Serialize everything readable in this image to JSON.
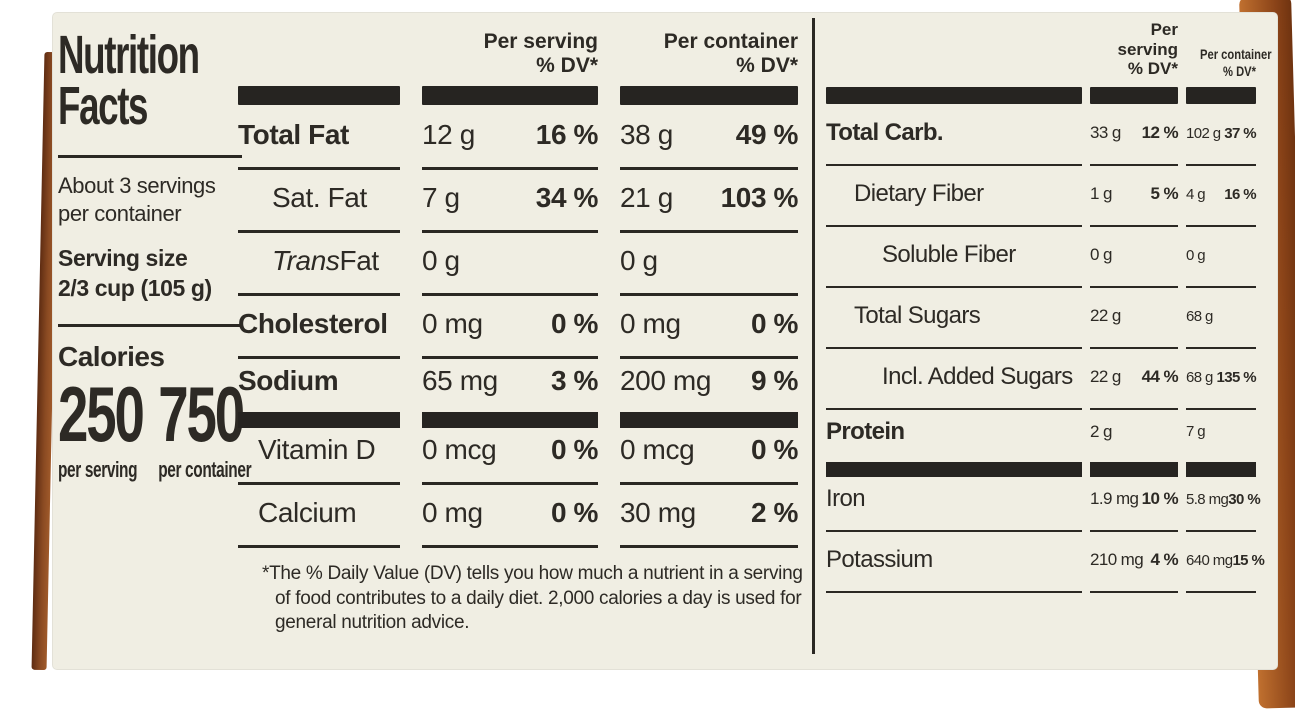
{
  "label": {
    "title_line1": "Nutrition",
    "title_line2": "Facts",
    "servings_line1": "About 3 servings",
    "servings_line2": "per container",
    "serving_size_label": "Serving size",
    "serving_size_value": "2/3 cup (105 g)",
    "calories": {
      "label": "Calories",
      "per_serving_value": "250",
      "per_serving_caption": "per serving",
      "per_container_value": "750",
      "per_container_caption": "per container"
    },
    "mid_panel": {
      "headers": {
        "serving_l1": "Per serving",
        "serving_l2": "% DV*",
        "container_l1": "Per container",
        "container_l2": "% DV*"
      },
      "rows": [
        {
          "name": "Total Fat",
          "s_amt": "12 g",
          "s_dv": "16 %",
          "c_amt": "38 g",
          "c_dv": "49 %"
        },
        {
          "name": "Sat. Fat",
          "s_amt": "7 g",
          "s_dv": "34 %",
          "c_amt": "21 g",
          "c_dv": "103 %"
        },
        {
          "name_it": "Trans",
          "name": " Fat",
          "s_amt": "0 g",
          "s_dv": "",
          "c_amt": "0 g",
          "c_dv": ""
        },
        {
          "name": "Cholesterol",
          "s_amt": "0 mg",
          "s_dv": "0 %",
          "c_amt": "0 mg",
          "c_dv": "0 %"
        },
        {
          "name": "Sodium",
          "s_amt": "65 mg",
          "s_dv": "3 %",
          "c_amt": "200 mg",
          "c_dv": "9 %"
        },
        {
          "name": "Vitamin D",
          "s_amt": "0 mcg",
          "s_dv": "0 %",
          "c_amt": "0 mcg",
          "c_dv": "0 %"
        },
        {
          "name": "Calcium",
          "s_amt": "0 mg",
          "s_dv": "0 %",
          "c_amt": "30 mg",
          "c_dv": "2 %"
        }
      ],
      "footnote": "*The % Daily Value (DV) tells you how much a nutrient in a serving of food contributes to a daily diet. 2,000 calories a day is used for general nutrition advice."
    },
    "right_panel": {
      "headers": {
        "serving_l1": "Per serving",
        "serving_l2": "% DV*",
        "container_l1": "Per container",
        "container_l2": "% DV*"
      },
      "rows": [
        {
          "name": "Total Carb.",
          "s_amt": "33 g",
          "s_dv": "12 %",
          "c_amt": "102 g",
          "c_dv": "37 %"
        },
        {
          "name": "Dietary Fiber",
          "s_amt": "1 g",
          "s_dv": "5 %",
          "c_amt": "4 g",
          "c_dv": "16 %"
        },
        {
          "name": "Soluble Fiber",
          "s_amt": "0 g",
          "s_dv": "",
          "c_amt": "0 g",
          "c_dv": ""
        },
        {
          "name": "Total Sugars",
          "s_amt": "22 g",
          "s_dv": "",
          "c_amt": "68 g",
          "c_dv": ""
        },
        {
          "name": "Incl. Added Sugars",
          "s_amt": "22 g",
          "s_dv": "44 %",
          "c_amt": "68 g",
          "c_dv": "135 %"
        },
        {
          "name": "Protein",
          "s_amt": "2 g",
          "s_dv": "",
          "c_amt": "7 g",
          "c_dv": ""
        },
        {
          "name": "Iron",
          "s_amt": "1.9 mg",
          "s_dv": "10 %",
          "c_amt": "5.8 mg",
          "c_dv": "30 %"
        },
        {
          "name": "Potassium",
          "s_amt": "210 mg",
          "s_dv": "4 %",
          "c_amt": "640 mg",
          "c_dv": "15 %"
        }
      ]
    }
  }
}
